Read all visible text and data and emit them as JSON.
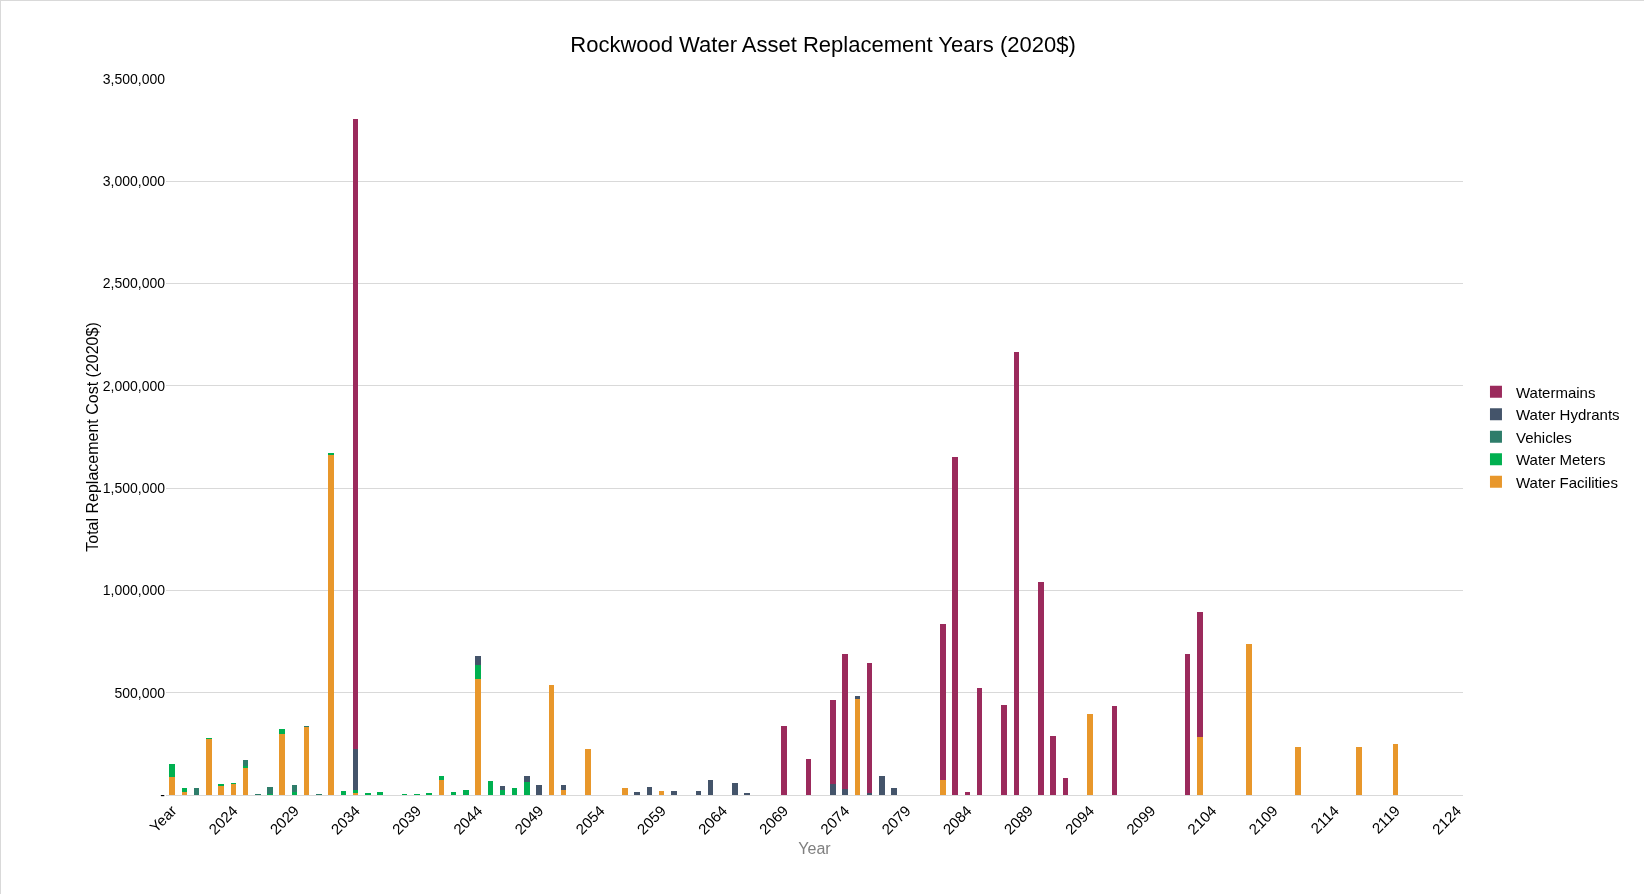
{
  "chart_data": {
    "type": "bar",
    "stacked": true,
    "title": "Rockwood Water Asset Replacement Years (2020$)",
    "xlabel": "Year",
    "ylabel": "Total Replacement Cost (2020$)",
    "categories": [
      "Year",
      null,
      null,
      null,
      null,
      "2024",
      null,
      null,
      null,
      null,
      "2029",
      null,
      null,
      null,
      null,
      "2034",
      null,
      null,
      null,
      null,
      "2039",
      null,
      null,
      null,
      null,
      "2044",
      null,
      null,
      null,
      null,
      "2049",
      null,
      null,
      null,
      null,
      "2054",
      null,
      null,
      null,
      null,
      "2059",
      null,
      null,
      null,
      null,
      "2064",
      null,
      null,
      null,
      null,
      "2069",
      null,
      null,
      null,
      null,
      "2074",
      null,
      null,
      null,
      null,
      "2079",
      null,
      null,
      null,
      null,
      "2084",
      null,
      null,
      null,
      null,
      "2089",
      null,
      null,
      null,
      null,
      "2094",
      null,
      null,
      null,
      null,
      "2099",
      null,
      null,
      null,
      null,
      "2104",
      null,
      null,
      null,
      null,
      "2109",
      null,
      null,
      null,
      null,
      "2114",
      null,
      null,
      null,
      null,
      "2119",
      null,
      null,
      null,
      null,
      "2124"
    ],
    "series": [
      {
        "name": "Water Facilities",
        "color": "#e8972b",
        "values": [
          87000,
          15000,
          null,
          272000,
          46000,
          53000,
          132000,
          null,
          null,
          299000,
          null,
          330000,
          null,
          1660000,
          null,
          10000,
          null,
          null,
          null,
          null,
          null,
          null,
          74000,
          null,
          null,
          568000,
          null,
          null,
          null,
          null,
          null,
          540000,
          23000,
          null,
          223000,
          null,
          null,
          35000,
          null,
          null,
          20000,
          null,
          null,
          null,
          null,
          null,
          null,
          null,
          null,
          null,
          null,
          null,
          null,
          null,
          null,
          null,
          470000,
          null,
          null,
          null,
          null,
          null,
          null,
          74000,
          null,
          null,
          null,
          null,
          null,
          null,
          null,
          null,
          null,
          null,
          null,
          394000,
          null,
          null,
          null,
          null,
          null,
          null,
          null,
          null,
          282000,
          null,
          null,
          null,
          738000,
          null,
          null,
          null,
          234000,
          null,
          null,
          null,
          null,
          234000,
          null,
          null,
          251000,
          null,
          null,
          null,
          null,
          null
        ]
      },
      {
        "name": "Water Meters",
        "color": "#00b050",
        "values": [
          66000,
          18000,
          null,
          6000,
          8000,
          8000,
          8000,
          null,
          4000,
          26000,
          16000,
          null,
          null,
          10000,
          20000,
          13000,
          10000,
          13000,
          null,
          3000,
          3000,
          10000,
          21000,
          13000,
          23000,
          68000,
          69000,
          26000,
          33000,
          66000,
          null,
          null,
          null,
          null,
          null,
          null,
          null,
          null,
          null,
          null,
          null,
          null,
          null,
          null,
          null,
          null,
          null,
          null,
          null,
          null,
          null,
          null,
          null,
          null,
          null,
          null,
          null,
          null,
          null,
          null,
          null,
          null,
          null,
          null,
          null,
          null,
          null,
          null,
          null,
          null,
          null,
          null,
          null,
          null,
          null,
          null,
          null,
          null,
          null,
          null,
          null,
          null,
          null,
          null,
          null,
          null,
          null,
          null,
          null,
          null,
          null,
          null,
          null,
          null,
          null,
          null,
          null,
          null,
          null,
          null,
          null,
          null,
          null,
          null,
          null,
          null
        ]
      },
      {
        "name": "Vehicles",
        "color": "#2e7d6a",
        "values": [
          null,
          null,
          33000,
          null,
          null,
          null,
          33000,
          3000,
          36000,
          null,
          33000,
          5000,
          3000,
          null,
          null,
          null,
          null,
          null,
          null,
          null,
          null,
          null,
          null,
          null,
          null,
          null,
          null,
          null,
          null,
          null,
          null,
          null,
          null,
          null,
          null,
          null,
          null,
          null,
          null,
          null,
          null,
          null,
          null,
          null,
          null,
          null,
          null,
          null,
          null,
          null,
          null,
          null,
          null,
          null,
          null,
          null,
          null,
          null,
          null,
          null,
          null,
          null,
          null,
          null,
          null,
          null,
          null,
          null,
          null,
          null,
          null,
          null,
          null,
          null,
          null,
          null,
          null,
          null,
          null,
          null,
          null,
          null,
          null,
          null,
          null,
          null,
          null,
          null,
          null,
          null,
          null,
          null,
          null,
          null,
          null,
          null,
          null,
          null,
          null,
          null,
          null,
          null,
          null,
          null,
          null,
          null
        ]
      },
      {
        "name": "Water Hydrants",
        "color": "#44546a",
        "values": [
          null,
          null,
          null,
          null,
          null,
          null,
          null,
          null,
          null,
          null,
          null,
          null,
          null,
          null,
          null,
          200000,
          null,
          null,
          null,
          null,
          null,
          null,
          null,
          null,
          null,
          45000,
          null,
          16000,
          null,
          28000,
          50000,
          null,
          26000,
          null,
          null,
          null,
          null,
          null,
          13000,
          40000,
          null,
          21000,
          null,
          21000,
          74000,
          null,
          58000,
          10000,
          null,
          null,
          null,
          null,
          null,
          null,
          53000,
          30000,
          13000,
          10000,
          92000,
          36000,
          null,
          null,
          null,
          null,
          null,
          null,
          null,
          null,
          null,
          null,
          null,
          null,
          null,
          null,
          null,
          null,
          null,
          null,
          null,
          null,
          null,
          null,
          null,
          null,
          null,
          null,
          null,
          null,
          null,
          null,
          null,
          null,
          null,
          null,
          null,
          null,
          null,
          null,
          null,
          null,
          null,
          null,
          null,
          null,
          null,
          null
        ]
      },
      {
        "name": "Watermains",
        "color": "#9b2a5c",
        "values": [
          null,
          null,
          null,
          null,
          null,
          null,
          null,
          null,
          null,
          null,
          null,
          null,
          null,
          null,
          null,
          3080000,
          null,
          null,
          null,
          null,
          null,
          null,
          null,
          null,
          null,
          null,
          null,
          null,
          null,
          null,
          null,
          null,
          null,
          null,
          null,
          null,
          null,
          null,
          null,
          null,
          null,
          null,
          null,
          null,
          null,
          null,
          null,
          null,
          null,
          null,
          338000,
          null,
          177000,
          null,
          411000,
          658000,
          null,
          637000,
          null,
          null,
          null,
          null,
          null,
          761000,
          1650000,
          13000,
          523000,
          null,
          440000,
          2165000,
          null,
          1040000,
          287000,
          83000,
          null,
          null,
          null,
          436000,
          null,
          null,
          null,
          null,
          null,
          691000,
          612000,
          null,
          null,
          null,
          null,
          null,
          null,
          null,
          null,
          null,
          null,
          null,
          null,
          null,
          null,
          null,
          null,
          null,
          null,
          null,
          null,
          null
        ]
      }
    ],
    "ylim": [
      0,
      3500000
    ],
    "yticks": [
      {
        "value": 0,
        "label": "-"
      },
      {
        "value": 500000,
        "label": "500,000"
      },
      {
        "value": 1000000,
        "label": "1,000,000"
      },
      {
        "value": 1500000,
        "label": "1,500,000"
      },
      {
        "value": 2000000,
        "label": "2,000,000"
      },
      {
        "value": 2500000,
        "label": "2,500,000"
      },
      {
        "value": 3000000,
        "label": "3,000,000"
      },
      {
        "value": 3500000,
        "label": "3,500,000"
      }
    ],
    "grid": "y",
    "legend": "right"
  }
}
